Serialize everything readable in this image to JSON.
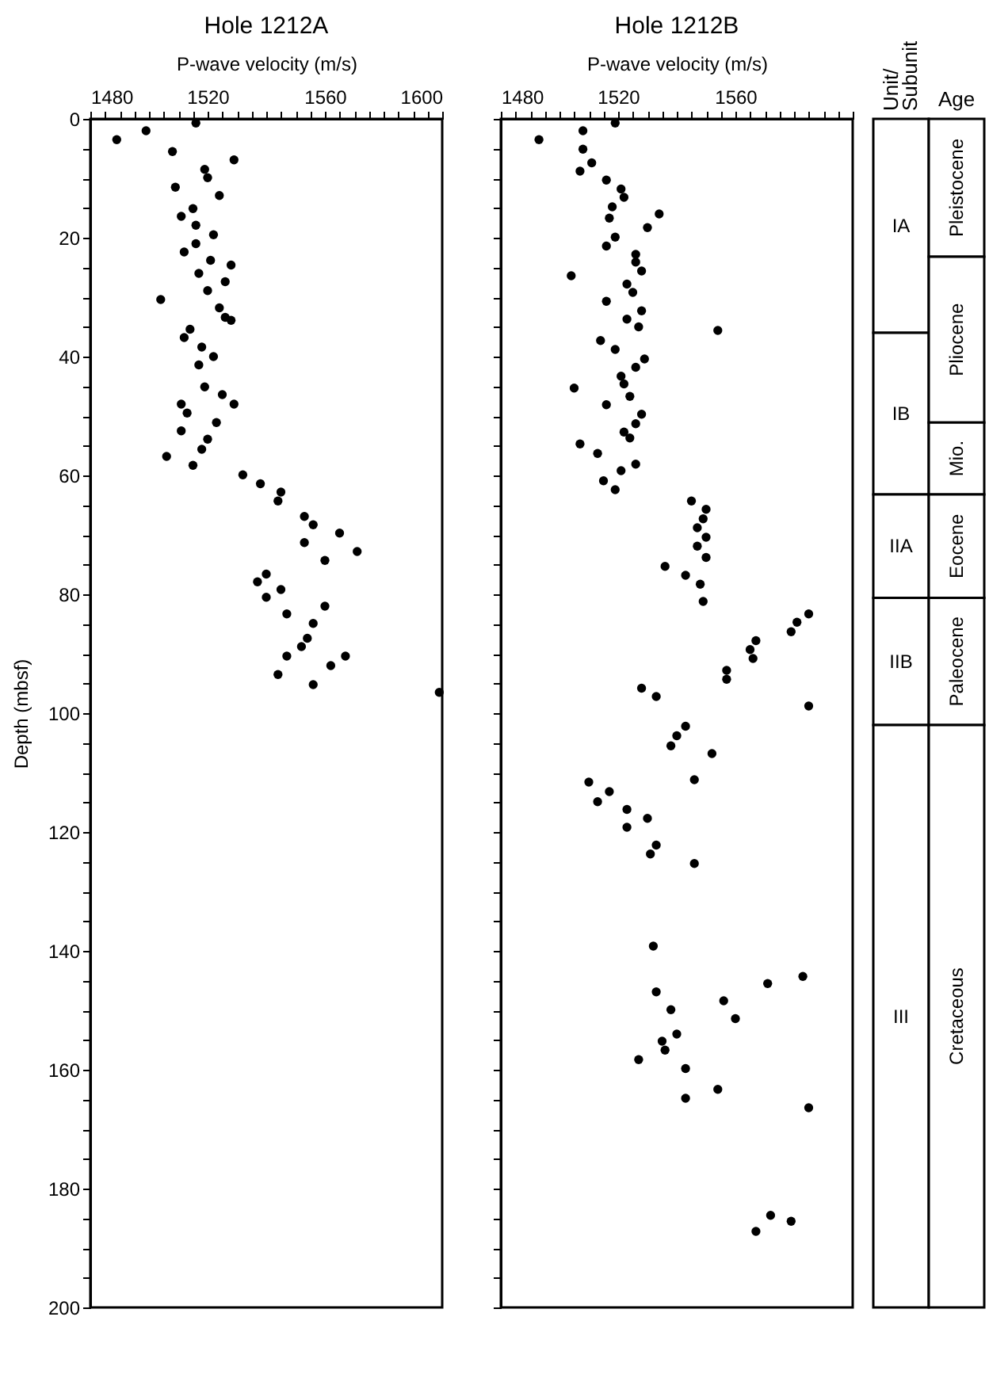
{
  "chart_data": [
    {
      "type": "scatter",
      "title": "Hole 1212A",
      "xlabel": "P-wave velocity (m/s)",
      "ylabel": "Depth (mbsf)",
      "xlim": [
        1480,
        1600
      ],
      "ylim": [
        200,
        0
      ],
      "marker": "circle",
      "grid": false,
      "xticks": [
        1480,
        {
          "value": 1485,
          "label": null
        },
        {
          "value": 1490,
          "label": null
        },
        {
          "value": 1495,
          "label": null
        },
        {
          "value": 1500,
          "label": null
        },
        {
          "value": 1505,
          "label": null
        },
        {
          "value": 1510,
          "label": null
        },
        {
          "value": 1515,
          "label": null
        },
        1520,
        {
          "value": 1525,
          "label": null
        },
        {
          "value": 1530,
          "label": null
        },
        {
          "value": 1535,
          "label": null
        },
        {
          "value": 1540,
          "label": null
        },
        {
          "value": 1545,
          "label": null
        },
        {
          "value": 1550,
          "label": null
        },
        {
          "value": 1555,
          "label": null
        },
        1560,
        {
          "value": 1565,
          "label": null
        },
        {
          "value": 1570,
          "label": null
        },
        {
          "value": 1575,
          "label": null
        },
        {
          "value": 1580,
          "label": null
        },
        {
          "value": 1585,
          "label": null
        },
        {
          "value": 1590,
          "label": null
        },
        {
          "value": 1595,
          "label": null
        },
        1600
      ],
      "yticks": [
        0,
        {
          "value": 5,
          "label": null
        },
        {
          "value": 10,
          "label": null
        },
        {
          "value": 15,
          "label": null
        },
        20,
        {
          "value": 25,
          "label": null
        },
        {
          "value": 30,
          "label": null
        },
        {
          "value": 35,
          "label": null
        },
        40,
        {
          "value": 45,
          "label": null
        },
        {
          "value": 50,
          "label": null
        },
        {
          "value": 55,
          "label": null
        },
        60,
        {
          "value": 65,
          "label": null
        },
        {
          "value": 70,
          "label": null
        },
        {
          "value": 75,
          "label": null
        },
        80,
        {
          "value": 85,
          "label": null
        },
        {
          "value": 90,
          "label": null
        },
        {
          "value": 95,
          "label": null
        },
        100,
        {
          "value": 105,
          "label": null
        },
        {
          "value": 110,
          "label": null
        },
        {
          "value": 115,
          "label": null
        },
        120,
        {
          "value": 125,
          "label": null
        },
        {
          "value": 130,
          "label": null
        },
        {
          "value": 135,
          "label": null
        },
        140,
        {
          "value": 145,
          "label": null
        },
        {
          "value": 150,
          "label": null
        },
        {
          "value": 155,
          "label": null
        },
        160,
        {
          "value": 165,
          "label": null
        },
        {
          "value": 170,
          "label": null
        },
        {
          "value": 175,
          "label": null
        },
        180,
        {
          "value": 185,
          "label": null
        },
        {
          "value": 190,
          "label": null
        },
        {
          "value": 195,
          "label": null
        },
        200
      ],
      "series": [
        {
          "color": "#000000",
          "x": [
            1516,
            1499,
            1489,
            1508,
            1529,
            1519,
            1520,
            1509,
            1524,
            1515,
            1511,
            1516,
            1522,
            1516,
            1512,
            1521,
            1528,
            1517,
            1526,
            1520,
            1504,
            1524,
            1526,
            1528,
            1514,
            1512,
            1518,
            1522,
            1517,
            1519,
            1525,
            1529,
            1511,
            1513,
            1523,
            1511,
            1520,
            1518,
            1506,
            1515,
            1532,
            1538,
            1545,
            1544,
            1553,
            1556,
            1565,
            1553,
            1571,
            1560,
            1540,
            1537,
            1545,
            1540,
            1560,
            1547,
            1556,
            1554,
            1552,
            1567,
            1547,
            1562,
            1544,
            1556,
            1599
          ],
          "values": [
            0.7,
            2.0,
            3.5,
            5.5,
            6.9,
            8.5,
            9.9,
            11.5,
            12.9,
            15.1,
            16.4,
            17.9,
            19.5,
            21.0,
            22.4,
            23.8,
            24.6,
            26.0,
            27.4,
            28.9,
            30.4,
            31.8,
            33.4,
            33.9,
            35.4,
            36.8,
            38.4,
            40.0,
            41.4,
            45.1,
            46.4,
            48.0,
            48.0,
            49.5,
            51.1,
            52.5,
            53.9,
            55.6,
            56.8,
            58.3,
            59.9,
            61.4,
            62.8,
            64.3,
            66.9,
            68.3,
            69.7,
            71.3,
            72.8,
            74.3,
            76.6,
            77.9,
            79.2,
            80.5,
            82.0,
            83.3,
            84.9,
            87.4,
            88.8,
            90.4,
            90.4,
            92.0,
            93.5,
            95.2,
            96.5
          ]
        }
      ]
    },
    {
      "type": "scatter",
      "title": "Hole 1212B",
      "xlabel": "P-wave velocity (m/s)",
      "xlim": [
        1480,
        1600
      ],
      "ylim": [
        200,
        0
      ],
      "marker": "circle",
      "grid": false,
      "tick_labels": "x",
      "xticks": [
        1480,
        {
          "value": 1485,
          "label": null
        },
        {
          "value": 1490,
          "label": null
        },
        {
          "value": 1495,
          "label": null
        },
        {
          "value": 1500,
          "label": null
        },
        {
          "value": 1505,
          "label": null
        },
        {
          "value": 1510,
          "label": null
        },
        {
          "value": 1515,
          "label": null
        },
        1520,
        {
          "value": 1525,
          "label": null
        },
        {
          "value": 1530,
          "label": null
        },
        {
          "value": 1535,
          "label": null
        },
        {
          "value": 1540,
          "label": null
        },
        {
          "value": 1545,
          "label": null
        },
        {
          "value": 1550,
          "label": null
        },
        {
          "value": 1555,
          "label": null
        },
        1560,
        {
          "value": 1565,
          "label": null
        },
        {
          "value": 1570,
          "label": null
        },
        {
          "value": 1575,
          "label": null
        },
        {
          "value": 1580,
          "label": null
        },
        {
          "value": 1585,
          "label": null
        },
        {
          "value": 1590,
          "label": null
        },
        {
          "value": 1595,
          "label": null
        },
        {
          "value": 1600,
          "label": null
        }
      ],
      "yticks": [
        0,
        {
          "value": 5,
          "label": null
        },
        {
          "value": 10,
          "label": null
        },
        {
          "value": 15,
          "label": null
        },
        20,
        {
          "value": 25,
          "label": null
        },
        {
          "value": 30,
          "label": null
        },
        {
          "value": 35,
          "label": null
        },
        40,
        {
          "value": 45,
          "label": null
        },
        {
          "value": 50,
          "label": null
        },
        {
          "value": 55,
          "label": null
        },
        60,
        {
          "value": 65,
          "label": null
        },
        {
          "value": 70,
          "label": null
        },
        {
          "value": 75,
          "label": null
        },
        80,
        {
          "value": 85,
          "label": null
        },
        {
          "value": 90,
          "label": null
        },
        {
          "value": 95,
          "label": null
        },
        100,
        {
          "value": 105,
          "label": null
        },
        {
          "value": 110,
          "label": null
        },
        {
          "value": 115,
          "label": null
        },
        120,
        {
          "value": 125,
          "label": null
        },
        {
          "value": 130,
          "label": null
        },
        {
          "value": 135,
          "label": null
        },
        140,
        {
          "value": 145,
          "label": null
        },
        {
          "value": 150,
          "label": null
        },
        {
          "value": 155,
          "label": null
        },
        160,
        {
          "value": 165,
          "label": null
        },
        {
          "value": 170,
          "label": null
        },
        {
          "value": 175,
          "label": null
        },
        180,
        {
          "value": 185,
          "label": null
        },
        {
          "value": 190,
          "label": null
        },
        {
          "value": 195,
          "label": null
        },
        200
      ],
      "series": [
        {
          "color": "#000000",
          "x": [
            1519,
            1508,
            1493,
            1508,
            1511,
            1507,
            1516,
            1521,
            1522,
            1518,
            1534,
            1517,
            1530,
            1519,
            1516,
            1526,
            1526,
            1528,
            1504,
            1523,
            1525,
            1516,
            1528,
            1523,
            1527,
            1554,
            1514,
            1519,
            1529,
            1526,
            1521,
            1522,
            1505,
            1524,
            1516,
            1528,
            1526,
            1522,
            1524,
            1507,
            1513,
            1526,
            1521,
            1515,
            1519,
            1545,
            1550,
            1549,
            1547,
            1550,
            1547,
            1550,
            1536,
            1543,
            1548,
            1549,
            1585,
            1581,
            1579,
            1567,
            1565,
            1566,
            1557,
            1557,
            1528,
            1533,
            1585,
            1543,
            1540,
            1538,
            1552,
            1546,
            1510,
            1517,
            1513,
            1523,
            1530,
            1523,
            1533,
            1531,
            1546,
            1532,
            1583,
            1571,
            1533,
            1556,
            1538,
            1560,
            1540,
            1535,
            1536,
            1527,
            1543,
            1554,
            1543,
            1585,
            1572,
            1579,
            1567
          ],
          "values": [
            0.7,
            2.0,
            3.5,
            5.1,
            7.4,
            8.8,
            10.3,
            11.8,
            13.2,
            14.8,
            16.0,
            16.7,
            18.3,
            19.9,
            21.4,
            22.8,
            24.1,
            25.6,
            26.4,
            27.8,
            29.2,
            30.7,
            32.3,
            33.7,
            35.0,
            35.6,
            37.3,
            38.8,
            40.4,
            41.8,
            43.3,
            44.6,
            45.3,
            46.7,
            48.1,
            49.7,
            51.3,
            52.7,
            53.7,
            54.7,
            56.3,
            58.1,
            59.2,
            60.9,
            62.4,
            64.3,
            65.7,
            67.3,
            68.8,
            70.4,
            71.9,
            73.8,
            75.3,
            76.8,
            78.3,
            81.2,
            83.3,
            84.7,
            86.3,
            87.8,
            89.3,
            90.8,
            92.8,
            94.3,
            95.8,
            97.2,
            98.8,
            102.2,
            103.8,
            105.5,
            106.8,
            111.2,
            111.6,
            113.2,
            114.9,
            116.2,
            117.7,
            119.2,
            122.2,
            123.7,
            125.3,
            139.2,
            144.3,
            145.5,
            146.9,
            148.4,
            149.9,
            151.4,
            154.0,
            155.2,
            156.7,
            158.3,
            159.8,
            163.3,
            164.8,
            166.4,
            184.5,
            185.5,
            187.2
          ]
        }
      ]
    },
    {
      "type": "bar",
      "categories": [
        "Unit/ Subunit",
        "Age"
      ],
      "stacked": true,
      "ylim": [
        200,
        0
      ],
      "tick_labels": "x",
      "series": [
        {
          "name": "IA",
          "color": "#ffffff",
          "values": [
            36,
            null
          ]
        },
        {
          "name": "IB",
          "color": "#ffffff",
          "values": [
            27.2,
            null
          ]
        },
        {
          "name": "IIA",
          "color": "#ffffff",
          "values": [
            17.4,
            null
          ]
        },
        {
          "name": "IIB",
          "color": "#ffffff",
          "values": [
            21.4,
            null
          ]
        },
        {
          "name": "III",
          "color": "#ffffff",
          "values": [
            98,
            null
          ]
        },
        {
          "name": "Pleistocene",
          "color": "#ffffff",
          "values": [
            null,
            23.2
          ]
        },
        {
          "name": "Pliocene",
          "color": "#ffffff",
          "values": [
            null,
            27.9
          ]
        },
        {
          "name": "Mio.",
          "color": "#ffffff",
          "values": [
            null,
            12.1
          ]
        },
        {
          "name": "Eocene",
          "color": "#ffffff",
          "values": [
            null,
            17.4
          ]
        },
        {
          "name": "Paleocene",
          "color": "#ffffff",
          "values": [
            null,
            21.4
          ]
        },
        {
          "name": "Cretaceous",
          "color": "#ffffff",
          "values": [
            null,
            98
          ]
        }
      ]
    }
  ]
}
